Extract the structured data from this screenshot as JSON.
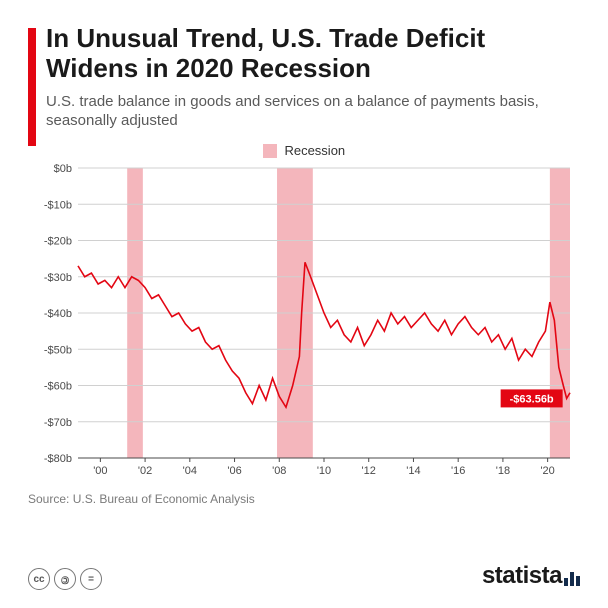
{
  "title": "In Unusual Trend, U.S. Trade Deficit Widens in 2020 Recession",
  "subtitle": "U.S. trade balance in goods and services on a balance of payments basis, seasonally adjusted",
  "legend_label": "Recession",
  "source": "Source: U.S. Bureau of Economic Analysis",
  "brand": "statista",
  "callout_value": "-$63.56b",
  "chart": {
    "type": "line",
    "x_start": 1999,
    "x_end": 2021,
    "x_ticks": [
      "'00",
      "'02",
      "'04",
      "'06",
      "'08",
      "'10",
      "'12",
      "'14",
      "'16",
      "'18",
      "'20"
    ],
    "x_tick_years": [
      2000,
      2002,
      2004,
      2006,
      2008,
      2010,
      2012,
      2014,
      2016,
      2018,
      2020
    ],
    "ylim": [
      -80,
      0
    ],
    "y_ticks": [
      0,
      -10,
      -20,
      -30,
      -40,
      -50,
      -60,
      -70,
      -80
    ],
    "y_tick_labels": [
      "$0b",
      "-$10b",
      "-$20b",
      "-$30b",
      "-$40b",
      "-$50b",
      "-$60b",
      "-$70b",
      "-$80b"
    ],
    "recession_bands": [
      {
        "start": 2001.2,
        "end": 2001.9
      },
      {
        "start": 2007.9,
        "end": 2009.5
      },
      {
        "start": 2020.1,
        "end": 2021.0
      }
    ],
    "line_color": "#e30613",
    "grid_color": "#d0d0d0",
    "axis_text_color": "#4a4a4a",
    "recession_color": "#f4b6bc",
    "callout_bg": "#e30613",
    "callout_text": "#ffffff",
    "background": "#ffffff",
    "line_width": 1.6,
    "axis_fontsize": 11,
    "series": [
      [
        1999.0,
        -27
      ],
      [
        1999.3,
        -30
      ],
      [
        1999.6,
        -29
      ],
      [
        1999.9,
        -32
      ],
      [
        2000.2,
        -31
      ],
      [
        2000.5,
        -33
      ],
      [
        2000.8,
        -30
      ],
      [
        2001.1,
        -33
      ],
      [
        2001.4,
        -30
      ],
      [
        2001.7,
        -31
      ],
      [
        2002.0,
        -33
      ],
      [
        2002.3,
        -36
      ],
      [
        2002.6,
        -35
      ],
      [
        2002.9,
        -38
      ],
      [
        2003.2,
        -41
      ],
      [
        2003.5,
        -40
      ],
      [
        2003.8,
        -43
      ],
      [
        2004.1,
        -45
      ],
      [
        2004.4,
        -44
      ],
      [
        2004.7,
        -48
      ],
      [
        2005.0,
        -50
      ],
      [
        2005.3,
        -49
      ],
      [
        2005.6,
        -53
      ],
      [
        2005.9,
        -56
      ],
      [
        2006.2,
        -58
      ],
      [
        2006.5,
        -62
      ],
      [
        2006.8,
        -65
      ],
      [
        2007.1,
        -60
      ],
      [
        2007.4,
        -64
      ],
      [
        2007.7,
        -58
      ],
      [
        2008.0,
        -63
      ],
      [
        2008.3,
        -66
      ],
      [
        2008.6,
        -60
      ],
      [
        2008.9,
        -52
      ],
      [
        2009.0,
        -40
      ],
      [
        2009.15,
        -26
      ],
      [
        2009.4,
        -30
      ],
      [
        2009.7,
        -35
      ],
      [
        2010.0,
        -40
      ],
      [
        2010.3,
        -44
      ],
      [
        2010.6,
        -42
      ],
      [
        2010.9,
        -46
      ],
      [
        2011.2,
        -48
      ],
      [
        2011.5,
        -44
      ],
      [
        2011.8,
        -49
      ],
      [
        2012.1,
        -46
      ],
      [
        2012.4,
        -42
      ],
      [
        2012.7,
        -45
      ],
      [
        2013.0,
        -40
      ],
      [
        2013.3,
        -43
      ],
      [
        2013.6,
        -41
      ],
      [
        2013.9,
        -44
      ],
      [
        2014.2,
        -42
      ],
      [
        2014.5,
        -40
      ],
      [
        2014.8,
        -43
      ],
      [
        2015.1,
        -45
      ],
      [
        2015.4,
        -42
      ],
      [
        2015.7,
        -46
      ],
      [
        2016.0,
        -43
      ],
      [
        2016.3,
        -41
      ],
      [
        2016.6,
        -44
      ],
      [
        2016.9,
        -46
      ],
      [
        2017.2,
        -44
      ],
      [
        2017.5,
        -48
      ],
      [
        2017.8,
        -46
      ],
      [
        2018.1,
        -50
      ],
      [
        2018.4,
        -47
      ],
      [
        2018.7,
        -53
      ],
      [
        2019.0,
        -50
      ],
      [
        2019.3,
        -52
      ],
      [
        2019.6,
        -48
      ],
      [
        2019.9,
        -45
      ],
      [
        2020.1,
        -37
      ],
      [
        2020.3,
        -42
      ],
      [
        2020.5,
        -55
      ],
      [
        2020.7,
        -60
      ],
      [
        2020.85,
        -63.56
      ],
      [
        2021.0,
        -62
      ]
    ],
    "callout_point": [
      2020.85,
      -63.56
    ]
  },
  "cc_icons": [
    "cc",
    "by",
    "nd"
  ]
}
